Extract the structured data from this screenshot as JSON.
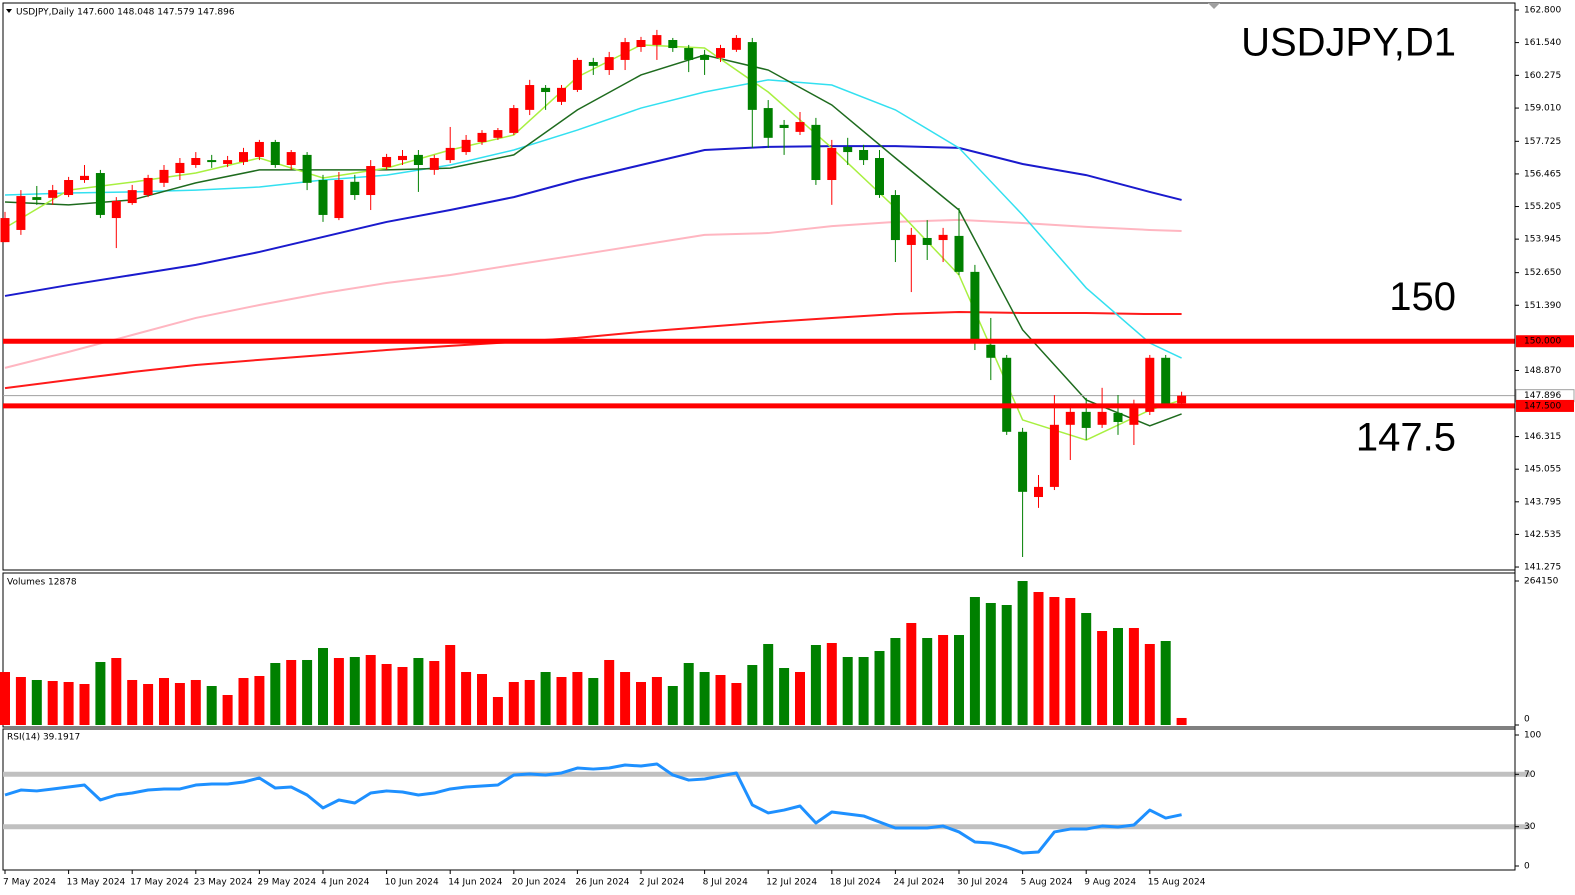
{
  "chart_data": [
    {
      "type": "candlestick",
      "header": "USDJPY,Daily  147.600 148.048 147.579 147.896",
      "title": "USDJPY,D1",
      "up_color": "#ff0000",
      "down_color": "#008000",
      "ylim": [
        141.16,
        163.07
      ],
      "yticks": [
        {
          "value": 162.8,
          "label": "162.800"
        },
        {
          "value": 161.54,
          "label": "161.540"
        },
        {
          "value": 160.275,
          "label": "160.275"
        },
        {
          "value": 159.01,
          "label": "159.010"
        },
        157.725,
        156.465,
        155.205,
        153.945,
        {
          "value": 152.65,
          "label": "152.650"
        },
        {
          "value": 151.39,
          "label": "151.390"
        },
        {
          "value": 148.87,
          "label": "148.870"
        },
        146.315,
        145.055,
        143.795,
        142.535,
        141.275
      ],
      "levels": [
        {
          "value": 150,
          "label": "150.000",
          "color": "#ff0000"
        },
        {
          "value": 147.5,
          "label": "147.500",
          "color": "#ff0000"
        }
      ],
      "current": {
        "value": 147.896,
        "label": "147.896"
      },
      "open": [
        153.83,
        154.3,
        155.57,
        155.54,
        155.65,
        156.23,
        156.5,
        154.76,
        155.34,
        155.65,
        156.12,
        156.5,
        156.81,
        157.0,
        156.85,
        156.93,
        157.12,
        157.7,
        156.81,
        157.2,
        156.23,
        154.76,
        156.16,
        155.65,
        156.73,
        157.0,
        157.2,
        156.62,
        157.0,
        157.31,
        157.7,
        157.86,
        158.05,
        158.94,
        159.79,
        159.25,
        159.71,
        160.79,
        160.48,
        160.87,
        161.37,
        161.45,
        161.64,
        161.33,
        161.06,
        160.95,
        161.26,
        161.56,
        159.01,
        158.36,
        158.09,
        158.36,
        156.23,
        157.51,
        157.39,
        157.08,
        155.65,
        153.72,
        153.99,
        153.91,
        154.07,
        152.68,
        149.86,
        149.36,
        146.5,
        143.98,
        144.37,
        146.77,
        147.27,
        146.77,
        147.23,
        146.77,
        147.27,
        149.36,
        147.6
      ],
      "high": [
        155.0,
        155.84,
        156.0,
        156.04,
        156.35,
        156.81,
        156.62,
        155.57,
        156.04,
        156.43,
        156.81,
        157.08,
        157.31,
        157.2,
        157.16,
        157.47,
        157.78,
        157.78,
        157.39,
        157.31,
        156.43,
        156.54,
        156.43,
        157.0,
        157.24,
        157.39,
        157.39,
        157.2,
        158.28,
        157.97,
        158.16,
        158.24,
        159.13,
        160.1,
        159.9,
        159.9,
        160.95,
        160.95,
        161.18,
        161.72,
        161.76,
        162.03,
        161.72,
        161.45,
        161.26,
        161.45,
        161.83,
        161.72,
        159.32,
        158.55,
        158.86,
        158.63,
        157.78,
        157.86,
        157.59,
        157.39,
        155.84,
        154.38,
        154.68,
        154.38,
        155.15,
        152.95,
        150.9,
        149.47,
        146.65,
        144.83,
        147.92,
        147.53,
        147.81,
        148.2,
        147.92,
        147.74,
        149.47,
        149.47,
        148.048
      ],
      "low": [
        153.83,
        154.11,
        155.27,
        155.27,
        155.57,
        156.12,
        154.76,
        153.6,
        155.27,
        155.57,
        155.96,
        156.23,
        156.7,
        156.7,
        156.73,
        156.81,
        157.0,
        156.7,
        156.62,
        155.84,
        154.61,
        154.68,
        155.46,
        155.07,
        156.62,
        156.81,
        155.77,
        156.43,
        156.89,
        157.2,
        157.59,
        157.78,
        157.97,
        158.74,
        158.94,
        159.13,
        159.63,
        160.29,
        160.29,
        160.48,
        161.18,
        160.87,
        161.18,
        160.4,
        160.29,
        160.79,
        161.18,
        157.47,
        157.47,
        157.2,
        157.97,
        156.04,
        155.27,
        156.81,
        156.81,
        155.54,
        153.06,
        151.9,
        153.14,
        153.06,
        152.56,
        149.66,
        148.5,
        146.38,
        141.66,
        143.56,
        144.25,
        145.41,
        146.19,
        146.65,
        146.38,
        145.99,
        147.15,
        147.43,
        147.579
      ],
      "close": [
        154.76,
        155.61,
        155.46,
        155.84,
        156.23,
        156.39,
        154.88,
        155.42,
        155.84,
        156.31,
        156.62,
        156.89,
        157.08,
        156.93,
        157.0,
        157.31,
        157.7,
        156.81,
        157.31,
        156.12,
        154.88,
        156.23,
        155.65,
        156.77,
        157.12,
        157.16,
        156.81,
        157.08,
        157.47,
        157.78,
        158.05,
        158.16,
        159.01,
        159.9,
        159.63,
        159.79,
        160.87,
        160.64,
        160.98,
        161.56,
        161.64,
        161.83,
        161.33,
        160.87,
        160.87,
        161.33,
        161.72,
        158.94,
        157.86,
        158.24,
        158.47,
        156.23,
        157.47,
        157.31,
        157.0,
        155.65,
        153.91,
        154.11,
        153.72,
        154.11,
        152.68,
        150.05,
        149.36,
        146.5,
        144.18,
        144.37,
        146.77,
        147.27,
        146.65,
        147.27,
        146.88,
        147.43,
        149.36,
        147.54,
        147.896
      ],
      "overlays": [
        {
          "color": "#ff1a1a",
          "width": 2,
          "x": [
            0,
            4,
            8,
            12,
            16,
            20,
            24,
            28,
            32,
            36,
            40,
            44,
            48,
            52,
            56,
            60,
            64,
            68,
            72,
            74
          ],
          "values": [
            148.19,
            148.5,
            148.81,
            149.08,
            149.28,
            149.47,
            149.66,
            149.82,
            149.97,
            150.13,
            150.36,
            150.55,
            150.74,
            150.9,
            151.05,
            151.13,
            151.09,
            151.09,
            151.05,
            151.05
          ]
        },
        {
          "color": "#ffb6c1",
          "width": 2,
          "x": [
            0,
            4,
            8,
            12,
            16,
            20,
            24,
            28,
            32,
            36,
            40,
            44,
            48,
            52,
            56,
            60,
            64,
            68,
            72,
            74
          ],
          "values": [
            148.97,
            149.59,
            150.24,
            150.9,
            151.4,
            151.86,
            152.25,
            152.56,
            152.95,
            153.33,
            153.72,
            154.11,
            154.18,
            154.45,
            154.61,
            154.69,
            154.57,
            154.42,
            154.3,
            154.26
          ]
        },
        {
          "color": "#1a1acd",
          "width": 2,
          "x": [
            0,
            4,
            8,
            12,
            16,
            20,
            24,
            28,
            32,
            36,
            40,
            44,
            48,
            52,
            56,
            60,
            64,
            68,
            72,
            74
          ],
          "values": [
            151.75,
            152.17,
            152.56,
            152.95,
            153.45,
            154.03,
            154.61,
            155.07,
            155.57,
            156.23,
            156.81,
            157.39,
            157.51,
            157.54,
            157.54,
            157.47,
            156.85,
            156.42,
            155.77,
            155.46
          ]
        },
        {
          "color": "#33e0f0",
          "width": 1.5,
          "x": [
            0,
            4,
            8,
            12,
            16,
            20,
            24,
            28,
            32,
            36,
            40,
            44,
            48,
            52,
            56,
            60,
            64,
            68,
            72,
            74
          ],
          "values": [
            155.65,
            155.73,
            155.77,
            155.84,
            155.96,
            156.23,
            156.42,
            156.81,
            157.39,
            158.16,
            159.01,
            159.63,
            160.1,
            159.9,
            158.94,
            157.47,
            154.88,
            152.06,
            149.93,
            149.35
          ]
        },
        {
          "color": "#1e6b1e",
          "width": 1.5,
          "x": [
            0,
            4,
            8,
            12,
            16,
            20,
            24,
            28,
            32,
            36,
            40,
            44,
            48,
            52,
            56,
            60,
            64,
            68,
            72,
            74
          ],
          "values": [
            155.38,
            155.27,
            155.46,
            156.12,
            156.62,
            156.62,
            156.62,
            156.69,
            157.2,
            158.94,
            160.29,
            161.06,
            160.48,
            159.13,
            157.08,
            155.07,
            150.44,
            147.73,
            146.73,
            147.19
          ]
        },
        {
          "color": "#a8f040",
          "width": 1.5,
          "x": [
            0,
            4,
            8,
            12,
            16,
            20,
            24,
            28,
            32,
            36,
            40,
            44,
            48,
            52,
            56,
            60,
            64,
            68,
            72,
            74
          ],
          "values": [
            154.38,
            155.84,
            156.15,
            156.5,
            157.08,
            156.31,
            156.69,
            157.39,
            157.97,
            160.21,
            161.45,
            161.33,
            159.63,
            157.47,
            155.15,
            152.56,
            146.96,
            146.18,
            147.34,
            147.73
          ]
        }
      ]
    },
    {
      "type": "bar",
      "header": "Volumes 12878",
      "up_color": "#ff0000",
      "down_color": "#008000",
      "ylim": [
        0,
        264150
      ],
      "yticks": [
        0,
        264150
      ],
      "values": [
        97200,
        88050,
        82550,
        80710,
        78880,
        75210,
        115570,
        122900,
        82550,
        75210,
        86220,
        77040,
        82550,
        71540,
        55030,
        86220,
        89890,
        113730,
        119240,
        119240,
        141250,
        122900,
        124740,
        128410,
        111900,
        106400,
        122900,
        117400,
        146750,
        97220,
        93550,
        51360,
        78880,
        82550,
        97220,
        88050,
        97220,
        86220,
        119240,
        97220,
        78880,
        88050,
        71540,
        113730,
        97220,
        91720,
        77040,
        110060,
        148590,
        104560,
        97220,
        146750,
        150420,
        124740,
        124740,
        135750,
        159590,
        187110,
        159590,
        165090,
        165090,
        234800,
        223800,
        220130,
        264150,
        243980,
        234800,
        232970,
        205450,
        172430,
        177940,
        177940,
        148590,
        154090,
        12878
      ]
    },
    {
      "type": "line",
      "header": "RSI(14) 39.1917",
      "color": "#1e90ff",
      "ylim": [
        0,
        100
      ],
      "yticks": [
        100,
        70,
        30,
        0
      ],
      "levels": [
        70,
        30
      ],
      "level_color": "#c0c0c0",
      "values": [
        54.2,
        58.0,
        57.3,
        58.8,
        60.3,
        61.8,
        50.4,
        54.2,
        55.7,
        58.0,
        58.8,
        58.8,
        61.8,
        62.6,
        62.6,
        64.1,
        67.2,
        59.5,
        60.3,
        54.2,
        44.3,
        50.4,
        48.1,
        55.7,
        57.3,
        56.5,
        54.2,
        55.7,
        58.8,
        60.3,
        61.1,
        61.8,
        69.5,
        70.2,
        69.5,
        71.0,
        74.8,
        74.0,
        74.8,
        77.1,
        76.3,
        77.9,
        69.5,
        65.6,
        66.4,
        68.7,
        71.0,
        46.6,
        40.5,
        42.7,
        45.8,
        32.8,
        41.2,
        39.7,
        38.2,
        33.6,
        29.0,
        29.0,
        29.0,
        30.5,
        26.0,
        18.3,
        17.6,
        14.5,
        9.9,
        10.7,
        26.0,
        28.2,
        28.2,
        30.5,
        29.8,
        31.3,
        42.7,
        36.6,
        39.1917
      ],
      "categories": [
        "7 May 2024",
        null,
        null,
        null,
        "13 May 2024",
        null,
        null,
        null,
        "17 May 2024",
        null,
        null,
        null,
        "23 May 2024",
        null,
        null,
        null,
        "29 May 2024",
        null,
        null,
        null,
        "4 Jun 2024",
        null,
        null,
        null,
        "10 Jun 2024",
        null,
        null,
        null,
        "14 Jun 2024",
        null,
        null,
        null,
        "20 Jun 2024",
        null,
        null,
        null,
        "26 Jun 2024",
        null,
        null,
        null,
        "2 Jul 2024",
        null,
        null,
        null,
        "8 Jul 2024",
        null,
        null,
        null,
        "12 Jul 2024",
        null,
        null,
        null,
        "18 Jul 2024",
        null,
        null,
        null,
        "24 Jul 2024",
        null,
        null,
        null,
        "30 Jul 2024",
        null,
        null,
        null,
        "5 Aug 2024",
        null,
        null,
        null,
        "9 Aug 2024",
        null,
        null,
        null,
        "15 Aug 2024",
        null,
        null
      ]
    }
  ]
}
